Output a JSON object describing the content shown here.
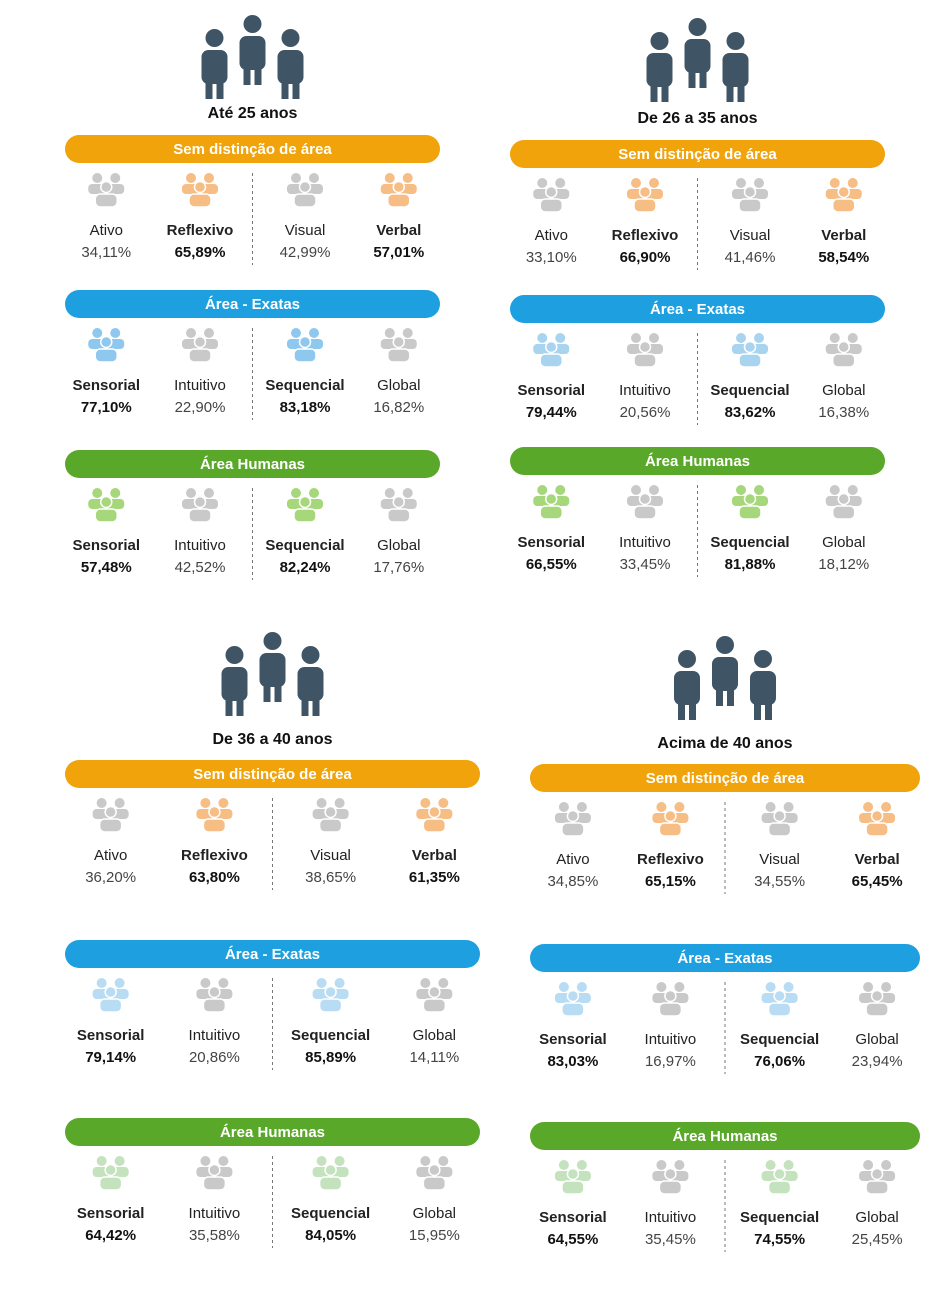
{
  "panels": [
    {
      "title": "Até 25 anos",
      "sections": [
        {
          "heading": "Sem distinção de área",
          "color": "#f0a30a",
          "icon_color": "#f6bd85",
          "items": [
            {
              "label": "Ativo",
              "value": "34,11%",
              "dominant": false
            },
            {
              "label": "Reflexivo",
              "value": "65,89%",
              "dominant": true
            },
            {
              "label": "Visual",
              "value": "42,99%",
              "dominant": false
            },
            {
              "label": "Verbal",
              "value": "57,01%",
              "dominant": true
            }
          ]
        },
        {
          "heading": "Área - Exatas",
          "color": "#1ea0e0",
          "icon_color": "#8fc8ee",
          "items": [
            {
              "label": "Sensorial",
              "value": "77,10%",
              "dominant": true
            },
            {
              "label": "Intuitivo",
              "value": "22,90%",
              "dominant": false
            },
            {
              "label": "Sequencial",
              "value": "83,18%",
              "dominant": true
            },
            {
              "label": "Global",
              "value": "16,82%",
              "dominant": false
            }
          ]
        },
        {
          "heading": "Área Humanas",
          "color": "#5aa829",
          "icon_color": "#a6d77a",
          "items": [
            {
              "label": "Sensorial",
              "value": "57,48%",
              "dominant": true
            },
            {
              "label": "Intuitivo",
              "value": "42,52%",
              "dominant": false
            },
            {
              "label": "Sequencial",
              "value": "82,24%",
              "dominant": true
            },
            {
              "label": "Global",
              "value": "17,76%",
              "dominant": false
            }
          ]
        }
      ]
    },
    {
      "title": "De 26 a 35 anos",
      "sections": [
        {
          "heading": "Sem distinção de área",
          "color": "#f0a30a",
          "icon_color": "#f6bd85",
          "items": [
            {
              "label": "Ativo",
              "value": "33,10%",
              "dominant": false
            },
            {
              "label": "Reflexivo",
              "value": "66,90%",
              "dominant": true
            },
            {
              "label": "Visual",
              "value": "41,46%",
              "dominant": false
            },
            {
              "label": "Verbal",
              "value": "58,54%",
              "dominant": true
            }
          ]
        },
        {
          "heading": "Área - Exatas",
          "color": "#1ea0e0",
          "icon_color": "#a9d4f0",
          "items": [
            {
              "label": "Sensorial",
              "value": "79,44%",
              "dominant": true
            },
            {
              "label": "Intuitivo",
              "value": "20,56%",
              "dominant": false
            },
            {
              "label": "Sequencial",
              "value": "83,62%",
              "dominant": true
            },
            {
              "label": "Global",
              "value": "16,38%",
              "dominant": false
            }
          ]
        },
        {
          "heading": "Área Humanas",
          "color": "#5aa829",
          "icon_color": "#a6d77a",
          "items": [
            {
              "label": "Sensorial",
              "value": "66,55%",
              "dominant": true
            },
            {
              "label": "Intuitivo",
              "value": "33,45%",
              "dominant": false
            },
            {
              "label": "Sequencial",
              "value": "81,88%",
              "dominant": true
            },
            {
              "label": "Global",
              "value": "18,12%",
              "dominant": false
            }
          ]
        }
      ]
    },
    {
      "title": "De 36 a 40 anos",
      "sections": [
        {
          "heading": "Sem distinção de área",
          "color": "#f0a30a",
          "icon_color": "#f6bd85",
          "items": [
            {
              "label": "Ativo",
              "value": "36,20%",
              "dominant": false
            },
            {
              "label": "Reflexivo",
              "value": "63,80%",
              "dominant": true
            },
            {
              "label": "Visual",
              "value": "38,65%",
              "dominant": false
            },
            {
              "label": "Verbal",
              "value": "61,35%",
              "dominant": true
            }
          ]
        },
        {
          "heading": "Área - Exatas",
          "color": "#1ea0e0",
          "icon_color": "#b8dcf3",
          "items": [
            {
              "label": "Sensorial",
              "value": "79,14%",
              "dominant": true
            },
            {
              "label": "Intuitivo",
              "value": "20,86%",
              "dominant": false
            },
            {
              "label": "Sequencial",
              "value": "85,89%",
              "dominant": true
            },
            {
              "label": "Global",
              "value": "14,11%",
              "dominant": false
            }
          ]
        },
        {
          "heading": "Área Humanas",
          "color": "#5aa829",
          "icon_color": "#c3e2bd",
          "items": [
            {
              "label": "Sensorial",
              "value": "64,42%",
              "dominant": true
            },
            {
              "label": "Intuitivo",
              "value": "35,58%",
              "dominant": false
            },
            {
              "label": "Sequencial",
              "value": "84,05%",
              "dominant": true
            },
            {
              "label": "Global",
              "value": "15,95%",
              "dominant": false
            }
          ]
        }
      ]
    },
    {
      "title": "Acima de 40 anos",
      "sections": [
        {
          "heading": "Sem distinção de área",
          "color": "#f0a30a",
          "icon_color": "#f6bd85",
          "items": [
            {
              "label": "Ativo",
              "value": "34,85%",
              "dominant": false
            },
            {
              "label": "Reflexivo",
              "value": "65,15%",
              "dominant": true
            },
            {
              "label": "Visual",
              "value": "34,55%",
              "dominant": false
            },
            {
              "label": "Verbal",
              "value": "65,45%",
              "dominant": true
            }
          ]
        },
        {
          "heading": "Área - Exatas",
          "color": "#1ea0e0",
          "icon_color": "#b8dcf3",
          "items": [
            {
              "label": "Sensorial",
              "value": "83,03%",
              "dominant": true
            },
            {
              "label": "Intuitivo",
              "value": "16,97%",
              "dominant": false
            },
            {
              "label": "Sequencial",
              "value": "76,06%",
              "dominant": true
            },
            {
              "label": "Global",
              "value": "23,94%",
              "dominant": false
            }
          ]
        },
        {
          "heading": "Área Humanas",
          "color": "#5aa829",
          "icon_color": "#c3e2bd",
          "items": [
            {
              "label": "Sensorial",
              "value": "64,55%",
              "dominant": true
            },
            {
              "label": "Intuitivo",
              "value": "35,45%",
              "dominant": false
            },
            {
              "label": "Sequencial",
              "value": "74,55%",
              "dominant": true
            },
            {
              "label": "Global",
              "value": "25,45%",
              "dominant": false
            }
          ]
        }
      ]
    }
  ]
}
